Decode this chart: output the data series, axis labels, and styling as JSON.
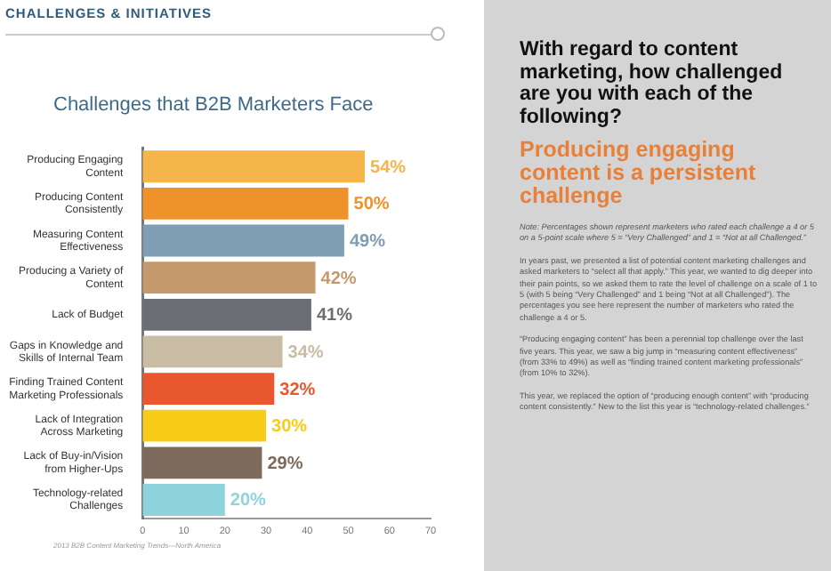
{
  "chart_data": [
    {
      "type": "bar",
      "orientation": "horizontal",
      "title": "Challenges that B2B Marketers Face",
      "annotations": [
        "CHALLENGES & INITIATIVES",
        "2013 B2B Content Marketing Trends—North America"
      ],
      "categories": [
        "Producing Engaging Content",
        "Producing Content Consistently",
        "Measuring Content Effectiveness",
        "Producing a Variety of Content",
        "Lack of Budget",
        "Gaps in Knowledge and Skills of Internal Team",
        "Finding Trained Content Marketing Professionals",
        "Lack of Integration Across Marketing",
        "Lack of Buy-in/Vision from Higher-Ups",
        "Technology-related Challenges"
      ],
      "values": [
        54,
        50,
        49,
        42,
        41,
        34,
        32,
        30,
        29,
        20
      ],
      "value_labels": [
        "54%",
        "50%",
        "49%",
        "42%",
        "41%",
        "34%",
        "32%",
        "30%",
        "29%",
        "20%"
      ],
      "colors": [
        "#f5b54a",
        "#f0922a",
        "#7f9db3",
        "#c49a6c",
        "#6b6e75",
        "#c8bca5",
        "#e8572e",
        "#f7cd1a",
        "#7d6a5c",
        "#8fd3dc"
      ],
      "xlim": [
        0,
        70
      ],
      "xticks": [
        0,
        10,
        20,
        30,
        40,
        50,
        60,
        70
      ]
    },
    {
      "type": "other",
      "title": "With regard to content marketing, how challenged are you with each of the following?",
      "subtitle": "Producing engaging content is a persistent challenge",
      "annotations": [
        "Note: Percentages shown represent marketers who rated each challenge a 4 or 5 on a 5-point scale where 5 = “Very Challenged” and 1 = “Not at all Challenged.”",
        "In years past, we presented a list of potential content marketing challenges and asked marketers to “select all that apply.” This year, we wanted to dig deeper into their pain points, so we asked them to rate the level of challenge on a scale of 1 to 5 (with 5 being “Very Challenged” and 1 being “Not at all Challenged”). The percentages you see here represent the number of marketers who rated the challenge a 4 or 5.",
        "“Producing engaging content” has been a perennial top challenge over the last five years. This year, we saw a big jump in “measuring content effectiveness” (from 33% to 49%) as well as “finding trained content marketing professionals” (from 10% to 32%).",
        "This year, we replaced the option of “producing enough content” with “producing content consistently.” New to the list this year is “technology-related challenges.”"
      ]
    }
  ]
}
